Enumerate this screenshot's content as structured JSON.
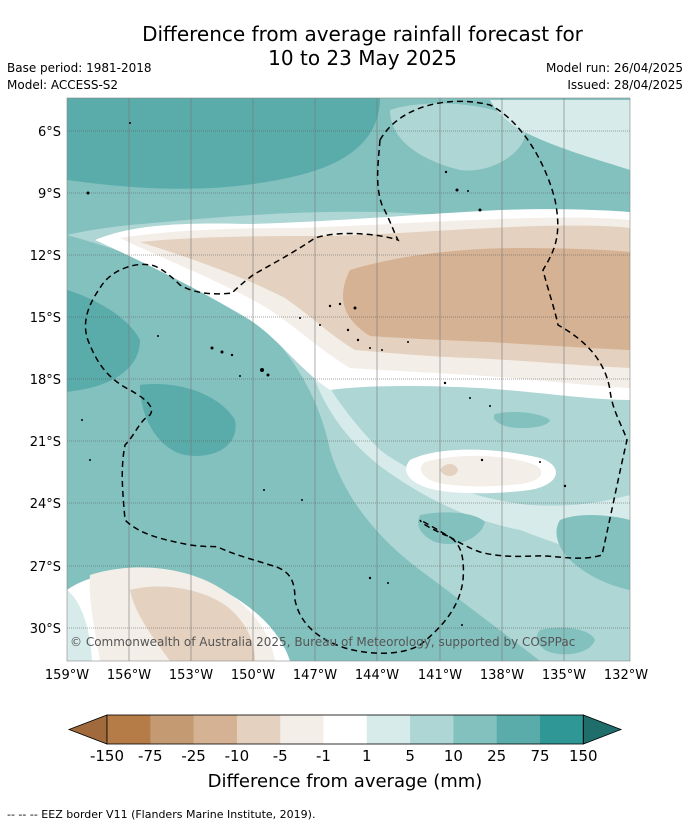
{
  "title_line1": "Difference from average rainfall forecast for",
  "title_line2": "10 to 23 May 2025",
  "base_period": "Base period: 1981-2018",
  "model": "Model: ACCESS-S2",
  "model_run": "Model run: 26/04/2025",
  "issued": "Issued: 28/04/2025",
  "lat_labels": [
    "6°S",
    "9°S",
    "12°S",
    "15°S",
    "18°S",
    "21°S",
    "24°S",
    "27°S",
    "30°S"
  ],
  "lon_labels": [
    "159°W",
    "156°W",
    "153°W",
    "150°W",
    "147°W",
    "144°W",
    "141°W",
    "138°W",
    "135°W",
    "132°W"
  ],
  "copyright": "© Commonwealth of Australia 2025, Bureau of Meteorology, supported by COSPPac",
  "colorbar": {
    "labels": [
      "-150",
      "-75",
      "-25",
      "-10",
      "-5",
      "-1",
      "1",
      "5",
      "10",
      "25",
      "75",
      "150"
    ],
    "colors": [
      "#a06a3c",
      "#b57c47",
      "#c49a72",
      "#d5b293",
      "#e4d1bf",
      "#f3eee7",
      "#ffffff",
      "#d6ebea",
      "#add6d5",
      "#83c1bf",
      "#5aacab",
      "#2f9896",
      "#1f6e6c"
    ],
    "title": "Difference from average (mm)"
  },
  "footnote": "--  --  -- EEZ border V11 (Flanders Marine Institute, 2019)."
}
